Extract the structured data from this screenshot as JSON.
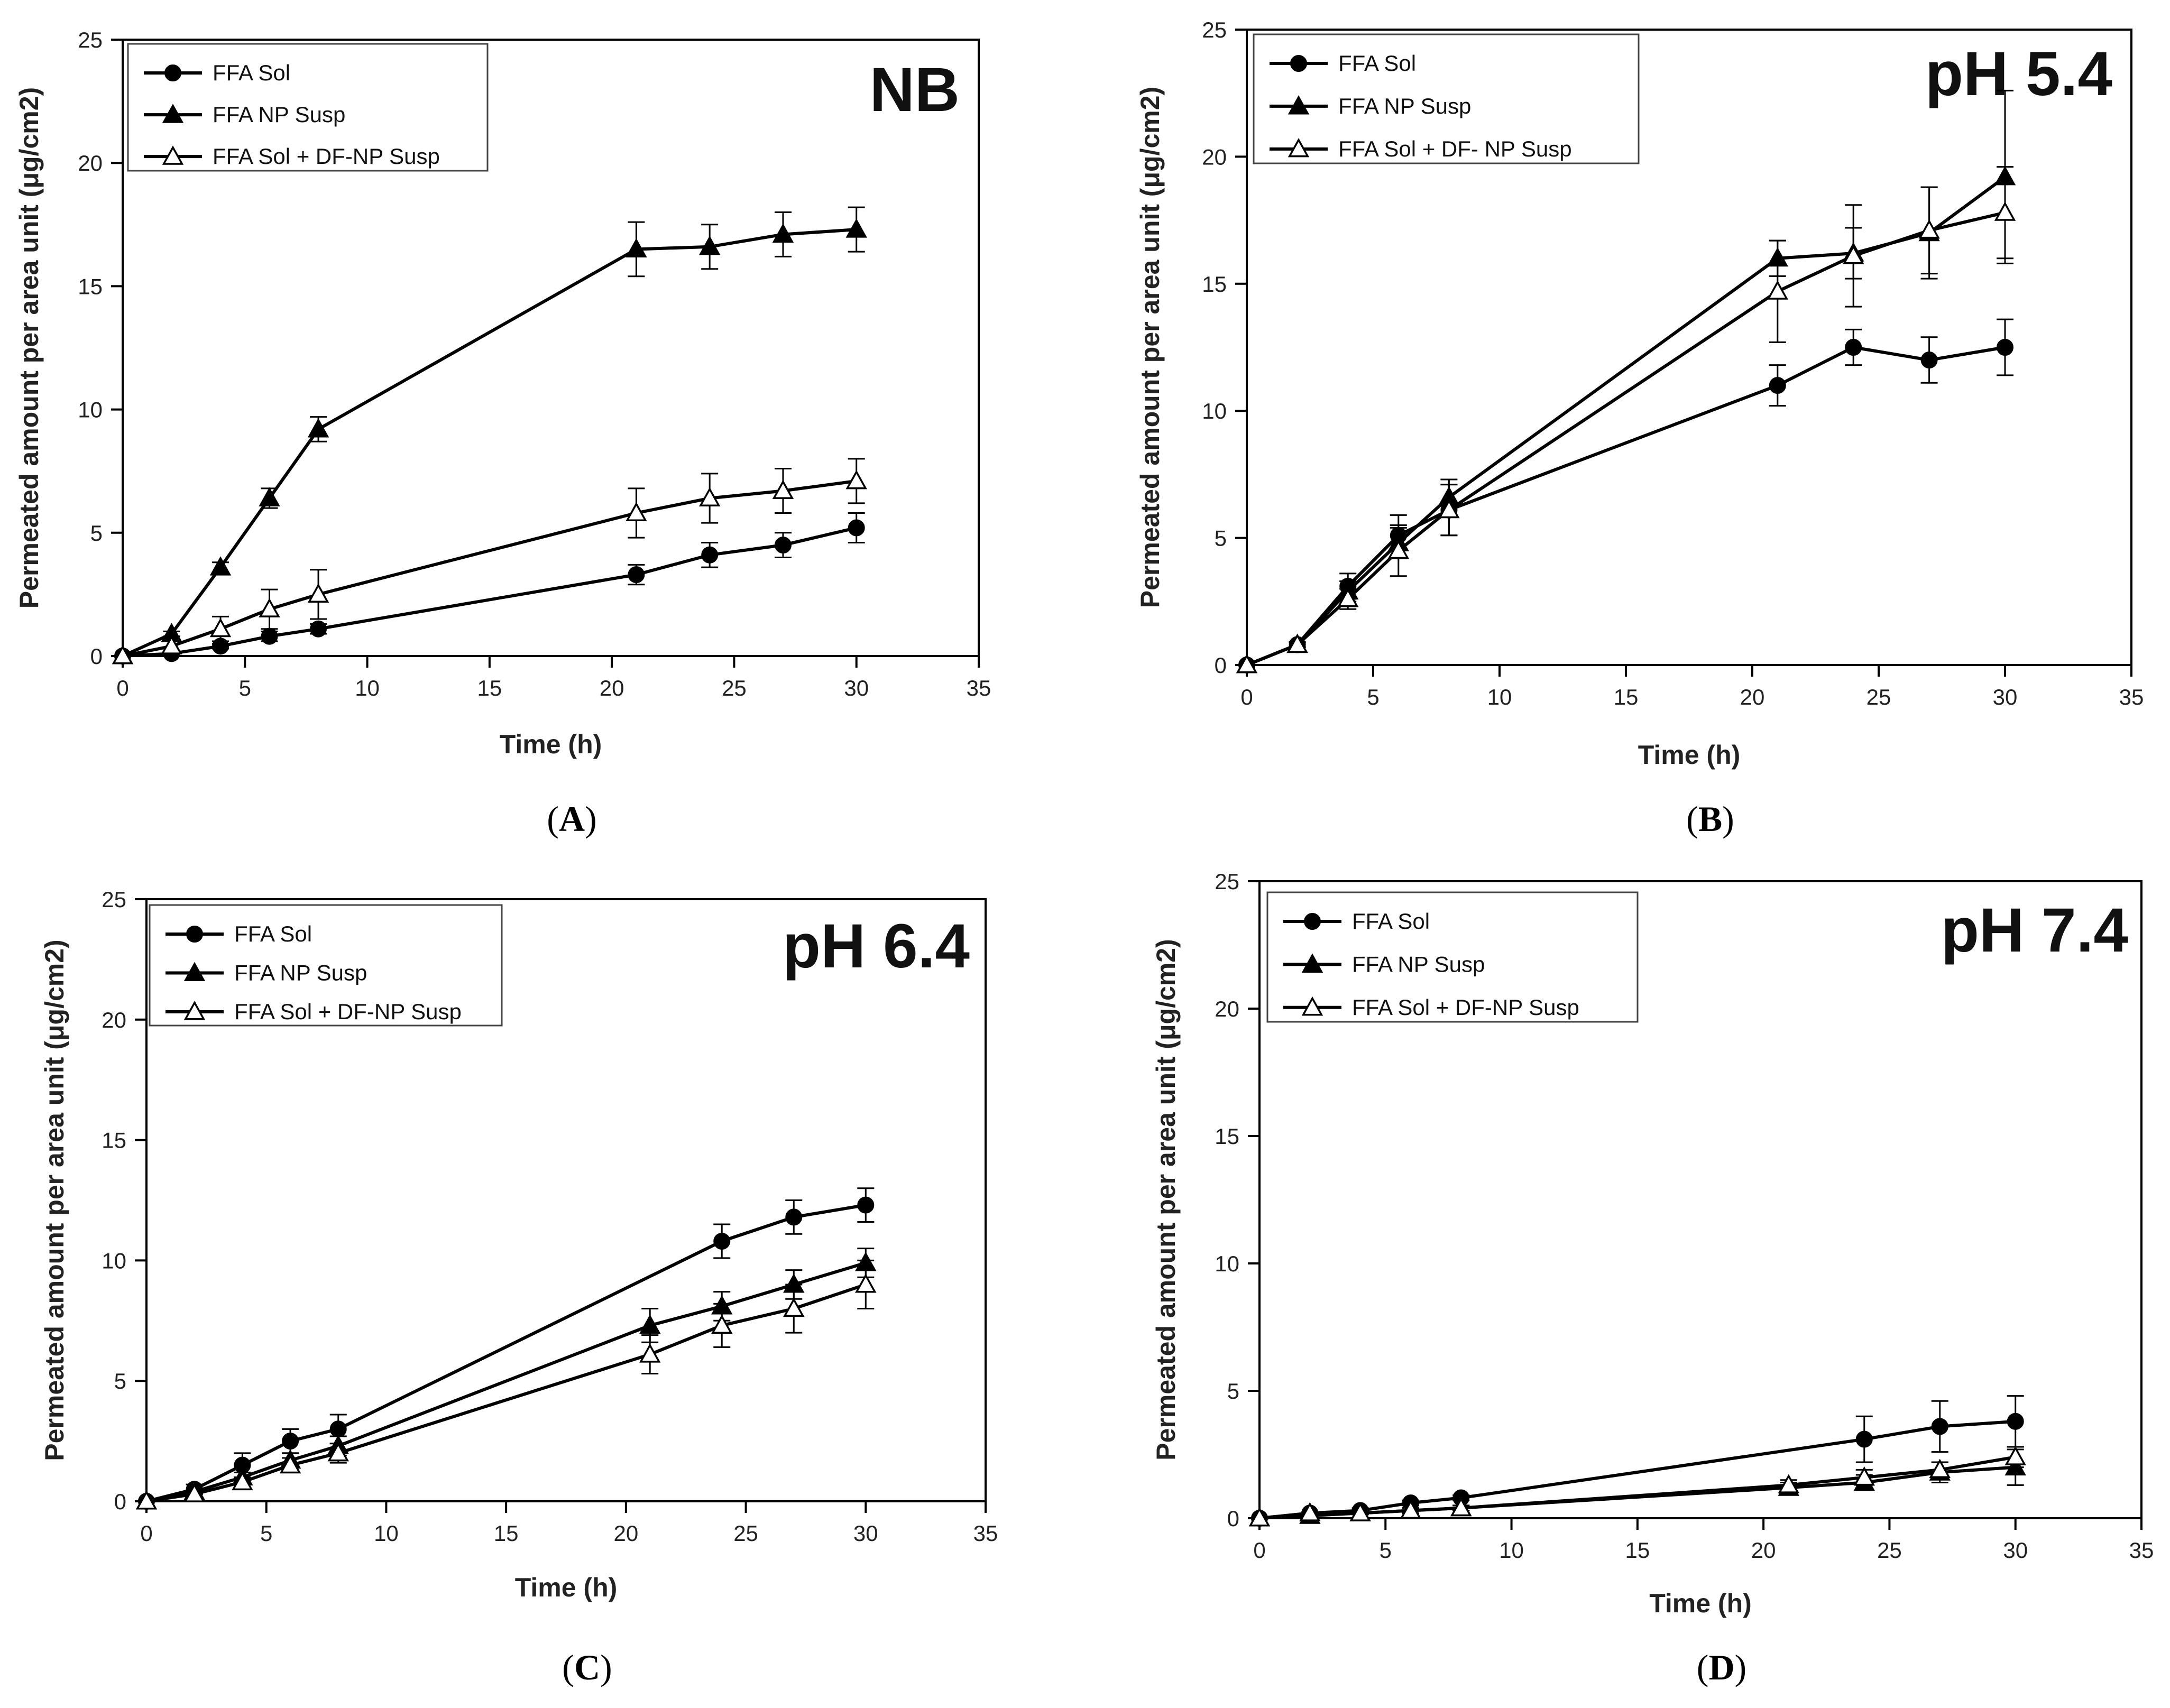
{
  "figure": {
    "panels": [
      "A",
      "B",
      "C",
      "D"
    ]
  },
  "chart_data": [
    {
      "type": "line",
      "panel_label": "A",
      "title": "NB",
      "xlabel": "Time (h)",
      "ylabel": "Permeated amount per area unit (μg/cm2)",
      "xlim": [
        0,
        35
      ],
      "ylim": [
        0,
        25
      ],
      "xticks": [
        0,
        5,
        10,
        15,
        20,
        25,
        30,
        35
      ],
      "yticks": [
        0,
        5,
        10,
        15,
        20,
        25
      ],
      "legend_position": "top-left",
      "series": [
        {
          "name": "FFA Sol",
          "marker": "circle-filled",
          "x": [
            0,
            2,
            4,
            6,
            8,
            21,
            24,
            27,
            30
          ],
          "y": [
            0,
            0.1,
            0.4,
            0.8,
            1.1,
            3.3,
            4.1,
            4.5,
            5.2
          ],
          "err": [
            0,
            0.05,
            0.1,
            0.2,
            0.2,
            0.4,
            0.5,
            0.5,
            0.6
          ]
        },
        {
          "name": "FFA NP Susp",
          "marker": "triangle-filled",
          "x": [
            0,
            2,
            4,
            6,
            8,
            21,
            24,
            27,
            30
          ],
          "y": [
            0,
            0.9,
            3.6,
            6.4,
            9.2,
            16.5,
            16.6,
            17.1,
            17.3
          ],
          "err": [
            0,
            0.1,
            0.2,
            0.4,
            0.5,
            1.1,
            0.9,
            0.9,
            0.9
          ]
        },
        {
          "name": "FFA Sol + DF-NP Susp",
          "marker": "triangle-open",
          "x": [
            0,
            2,
            4,
            6,
            8,
            21,
            24,
            27,
            30
          ],
          "y": [
            0,
            0.4,
            1.1,
            1.9,
            2.5,
            5.8,
            6.4,
            6.7,
            7.1
          ],
          "err": [
            0,
            0.2,
            0.5,
            0.8,
            1.0,
            1.0,
            1.0,
            0.9,
            0.9
          ]
        }
      ]
    },
    {
      "type": "line",
      "panel_label": "B",
      "title": "pH 5.4",
      "xlabel": "Time (h)",
      "ylabel": "Permeated amount per area unit (μg/cm2)",
      "xlim": [
        0,
        35
      ],
      "ylim": [
        0,
        25
      ],
      "xticks": [
        0,
        5,
        10,
        15,
        20,
        25,
        30,
        35
      ],
      "yticks": [
        0,
        5,
        10,
        15,
        20,
        25
      ],
      "legend_position": "top-left",
      "series": [
        {
          "name": "FFA Sol",
          "marker": "circle-filled",
          "x": [
            0,
            2,
            4,
            6,
            8,
            21,
            24,
            27,
            30
          ],
          "y": [
            0,
            0.8,
            3.1,
            5.1,
            6.1,
            11.0,
            12.5,
            12.0,
            12.5
          ],
          "err": [
            0,
            0.1,
            0.5,
            0.8,
            1.0,
            0.8,
            0.7,
            0.9,
            1.1
          ]
        },
        {
          "name": "FFA NP Susp",
          "marker": "triangle-filled",
          "x": [
            0,
            2,
            4,
            6,
            8,
            21,
            24,
            27,
            30
          ],
          "y": [
            0,
            0.8,
            2.9,
            4.8,
            6.6,
            16.0,
            16.2,
            17.0,
            19.2
          ],
          "err": [
            0,
            0.1,
            0.4,
            0.6,
            0.7,
            0.7,
            1.0,
            1.8,
            3.4
          ]
        },
        {
          "name": "FFA Sol + DF- NP  Susp",
          "marker": "triangle-open",
          "x": [
            0,
            2,
            4,
            6,
            8,
            21,
            24,
            27,
            30
          ],
          "y": [
            0,
            0.8,
            2.6,
            4.5,
            6.1,
            14.7,
            16.1,
            17.1,
            17.8
          ],
          "err": [
            0,
            0.1,
            0.4,
            1.0,
            1.0,
            2.0,
            2.0,
            1.7,
            1.8
          ]
        }
      ]
    },
    {
      "type": "line",
      "panel_label": "C",
      "title": "pH 6.4",
      "xlabel": "Time (h)",
      "ylabel": "Permeated amount per area unit (μg/cm2)",
      "xlim": [
        0,
        35
      ],
      "ylim": [
        0,
        25
      ],
      "xticks": [
        0,
        5,
        10,
        15,
        20,
        25,
        30,
        35
      ],
      "yticks": [
        0,
        5,
        10,
        15,
        20,
        25
      ],
      "legend_position": "top-left",
      "series": [
        {
          "name": "FFA Sol",
          "marker": "circle-filled",
          "x": [
            0,
            2,
            4,
            6,
            8,
            24,
            27,
            30
          ],
          "y": [
            0,
            0.5,
            1.5,
            2.5,
            3.0,
            10.8,
            11.8,
            12.3
          ],
          "err": [
            0,
            0.2,
            0.5,
            0.5,
            0.6,
            0.7,
            0.7,
            0.7
          ]
        },
        {
          "name": "FFA NP Susp",
          "marker": "triangle-filled",
          "x": [
            0,
            2,
            4,
            6,
            8,
            21,
            24,
            27,
            30
          ],
          "y": [
            0,
            0.4,
            1.0,
            1.7,
            2.3,
            7.3,
            8.1,
            9.0,
            9.9
          ],
          "err": [
            0,
            0.1,
            0.2,
            0.3,
            0.4,
            0.7,
            0.6,
            0.6,
            0.6
          ]
        },
        {
          "name": "FFA Sol + DF-NP Susp",
          "marker": "triangle-open",
          "x": [
            0,
            2,
            4,
            6,
            8,
            21,
            24,
            27,
            30
          ],
          "y": [
            0,
            0.3,
            0.8,
            1.5,
            2.0,
            6.1,
            7.3,
            8.0,
            9.0
          ],
          "err": [
            0,
            0.1,
            0.2,
            0.3,
            0.4,
            0.8,
            0.9,
            1.0,
            1.0
          ]
        }
      ]
    },
    {
      "type": "line",
      "panel_label": "D",
      "title": "pH 7.4",
      "xlabel": "Time (h)",
      "ylabel": "Permeated amount per area unit (μg/cm2)",
      "xlim": [
        0,
        35
      ],
      "ylim": [
        0,
        25
      ],
      "xticks": [
        0,
        5,
        10,
        15,
        20,
        25,
        30,
        35
      ],
      "yticks": [
        0,
        5,
        10,
        15,
        20,
        25
      ],
      "legend_position": "top-left",
      "series": [
        {
          "name": "FFA Sol",
          "marker": "circle-filled",
          "x": [
            0,
            2,
            4,
            6,
            8,
            24,
            27,
            30
          ],
          "y": [
            0,
            0.2,
            0.3,
            0.6,
            0.8,
            3.1,
            3.6,
            3.8
          ],
          "err": [
            0,
            0.05,
            0.1,
            0.1,
            0.1,
            0.9,
            1.0,
            1.0
          ]
        },
        {
          "name": "FFA NP Susp",
          "marker": "triangle-filled",
          "x": [
            0,
            2,
            4,
            6,
            8,
            21,
            24,
            27,
            30
          ],
          "y": [
            0,
            0.1,
            0.2,
            0.3,
            0.4,
            1.2,
            1.4,
            1.8,
            2.0
          ],
          "err": [
            0,
            0.05,
            0.05,
            0.1,
            0.1,
            0.2,
            0.3,
            0.4,
            0.7
          ]
        },
        {
          "name": "FFA Sol + DF-NP Susp",
          "marker": "triangle-open",
          "x": [
            0,
            2,
            4,
            6,
            8,
            21,
            24,
            27,
            30
          ],
          "y": [
            0,
            0.2,
            0.2,
            0.3,
            0.4,
            1.3,
            1.6,
            1.9,
            2.4
          ],
          "err": [
            0,
            0.05,
            0.05,
            0.1,
            0.1,
            0.2,
            0.3,
            0.3,
            0.4
          ]
        }
      ]
    }
  ]
}
